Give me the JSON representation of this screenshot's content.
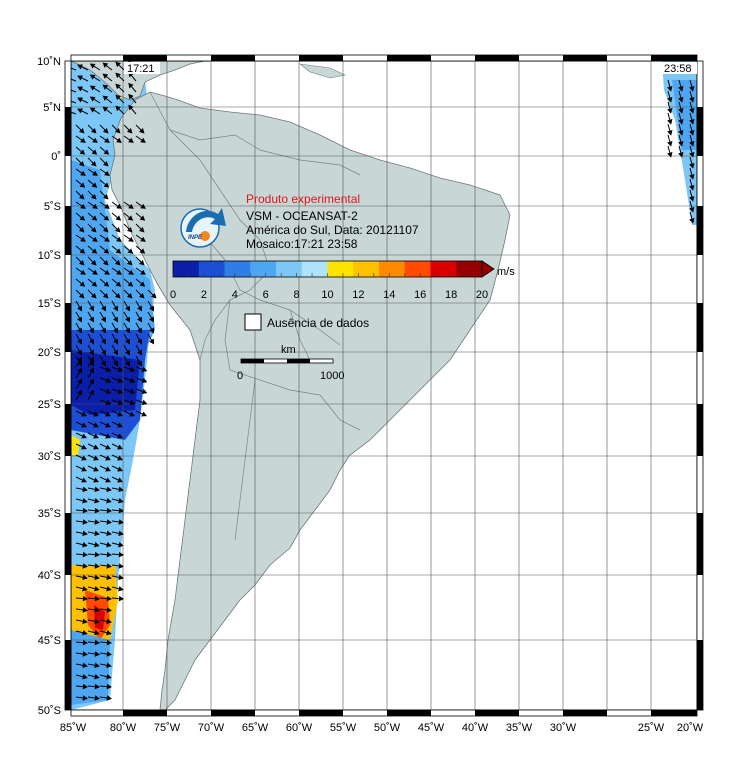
{
  "map": {
    "title": "Produto experimental",
    "product_line": "VSM - OCEANSAT-2",
    "region_date_line": "América do Sul, Data: 20121107",
    "mosaic_line": "Mosaico:17:21 23:58",
    "time_left": "17:21",
    "time_right": "23:58",
    "logo_text": "INPE",
    "no_data_label": "Ausência de dados",
    "scale_bar": {
      "unit_label": "km",
      "start_label": "0",
      "end_label": "1000"
    },
    "colorbar": {
      "unit": "m/s",
      "ticks": [
        "0",
        "2",
        "4",
        "6",
        "8",
        "10",
        "12",
        "14",
        "16",
        "18",
        "20"
      ],
      "colors": [
        "#0a1ea8",
        "#1c4fd6",
        "#2f7ee6",
        "#4fa6f0",
        "#7cc7f5",
        "#aee3fb",
        "#ffe400",
        "#ffc000",
        "#ff8a00",
        "#ff4a00",
        "#d90000",
        "#960000"
      ]
    },
    "lat_labels": [
      "10˚N",
      "5˚N",
      "0˚",
      "5˚S",
      "10˚S",
      "15˚S",
      "20˚S",
      "25˚S",
      "30˚S",
      "35˚S",
      "40˚S",
      "45˚S",
      "50˚S"
    ],
    "lon_labels": [
      "85˚W",
      "80˚W",
      "75˚W",
      "70˚W",
      "65˚W",
      "60˚W",
      "55˚W",
      "50˚W",
      "45˚W",
      "40˚W",
      "35˚W",
      "30˚W",
      "25˚W",
      "20˚W"
    ],
    "land_color": "#c9d6d6",
    "ocean_color": "#ffffff"
  }
}
